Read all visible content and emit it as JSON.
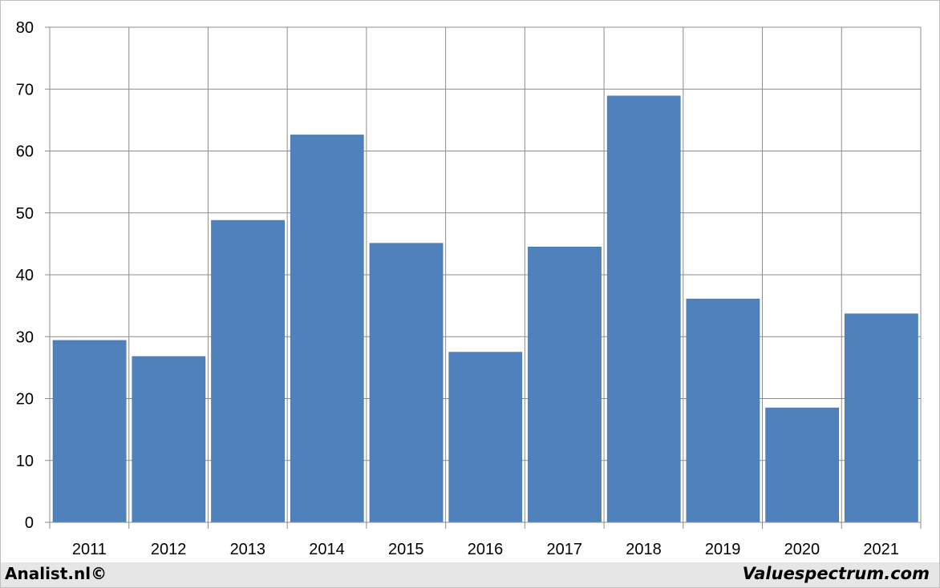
{
  "chart_data": {
    "type": "bar",
    "categories": [
      "2011",
      "2012",
      "2013",
      "2014",
      "2015",
      "2016",
      "2017",
      "2018",
      "2019",
      "2020",
      "2021"
    ],
    "values": [
      29.4,
      26.8,
      48.8,
      62.6,
      45.1,
      27.5,
      44.5,
      68.9,
      36.1,
      18.5,
      33.7
    ],
    "ylim": [
      0,
      80
    ],
    "yticks": [
      0,
      10,
      20,
      30,
      40,
      50,
      60,
      70,
      80
    ],
    "grid": true,
    "bar_color": "#4f81bd",
    "title": "",
    "xlabel": "",
    "ylabel": ""
  },
  "footer": {
    "left_text": "Analist.nl©",
    "right_text": "Valuespectrum.com"
  }
}
